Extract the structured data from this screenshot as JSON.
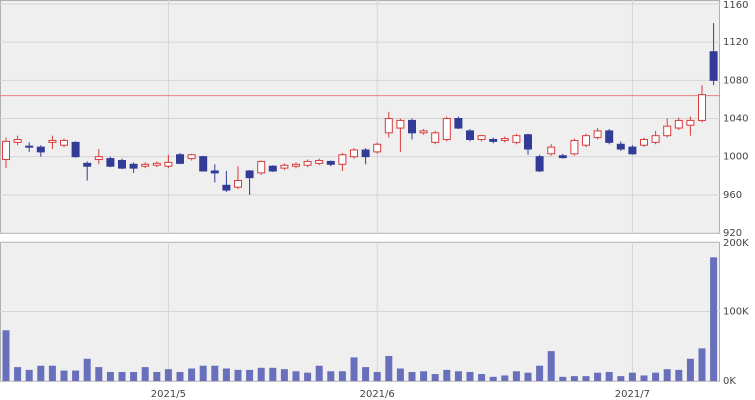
{
  "chart_data": [
    {
      "type": "candlestick",
      "open": [
        997,
        1015,
        1011,
        1010,
        1015,
        1012,
        1015,
        993,
        997,
        998,
        996,
        992,
        990,
        991,
        990,
        1002,
        998,
        1000,
        985,
        970,
        968,
        985,
        983,
        990,
        988,
        990,
        991,
        993,
        995,
        992,
        1000,
        1007,
        1005,
        1025,
        1030,
        1038,
        1025,
        1015,
        1018,
        1040,
        1027,
        1018,
        1018,
        1017,
        1015,
        1023,
        1000,
        1003,
        1001,
        1003,
        1012,
        1020,
        1027,
        1013,
        1010,
        1012,
        1015,
        1022,
        1030,
        1033,
        1038,
        1110
      ],
      "high": [
        1020,
        1022,
        1015,
        1012,
        1022,
        1019,
        1016,
        995,
        1008,
        1000,
        998,
        994,
        994,
        995,
        1002,
        1004,
        1003,
        1001,
        992,
        985,
        990,
        986,
        996,
        991,
        993,
        994,
        997,
        998,
        996,
        1004,
        1009,
        1009,
        1015,
        1047,
        1040,
        1040,
        1029,
        1027,
        1042,
        1042,
        1029,
        1023,
        1020,
        1021,
        1024,
        1024,
        1002,
        1013,
        1003,
        1019,
        1024,
        1030,
        1029,
        1016,
        1012,
        1020,
        1027,
        1040,
        1041,
        1042,
        1075,
        1140
      ],
      "low": [
        988,
        1012,
        1005,
        1000,
        1008,
        1010,
        999,
        975,
        992,
        989,
        987,
        983,
        988,
        989,
        988,
        992,
        996,
        985,
        973,
        963,
        966,
        960,
        981,
        984,
        986,
        988,
        989,
        991,
        990,
        985,
        998,
        992,
        1003,
        1020,
        1005,
        1018,
        1023,
        1013,
        1016,
        1029,
        1016,
        1016,
        1014,
        1015,
        1013,
        1002,
        984,
        1001,
        998,
        1001,
        1010,
        1018,
        1013,
        1006,
        1002,
        1010,
        1013,
        1020,
        1028,
        1022,
        1036,
        1075
      ],
      "close": [
        1016,
        1018,
        1010,
        1005,
        1017,
        1017,
        1000,
        990,
        1000,
        990,
        988,
        988,
        992,
        993,
        994,
        993,
        1002,
        985,
        983,
        965,
        975,
        978,
        995,
        985,
        991,
        992,
        995,
        996,
        992,
        1002,
        1007,
        1000,
        1013,
        1040,
        1038,
        1025,
        1027,
        1025,
        1040,
        1030,
        1018,
        1022,
        1016,
        1019,
        1022,
        1008,
        985,
        1010,
        999,
        1017,
        1022,
        1027,
        1015,
        1008,
        1003,
        1018,
        1022,
        1032,
        1038,
        1038,
        1065,
        1080
      ],
      "up_color": "#d83c3c",
      "down_color": "#323c96",
      "ylim": [
        920,
        1160
      ],
      "yticks": [
        920,
        960,
        1000,
        1040,
        1080,
        1120,
        1160
      ],
      "hline": 1064,
      "hline_color": "#e88080",
      "grid": true
    },
    {
      "type": "bar",
      "categories": [
        null,
        null,
        null,
        null,
        null,
        null,
        null,
        null,
        null,
        null,
        null,
        null,
        null,
        null,
        "2021/5",
        null,
        null,
        null,
        null,
        null,
        null,
        null,
        null,
        null,
        null,
        null,
        null,
        null,
        null,
        null,
        null,
        null,
        "2021/6",
        null,
        null,
        null,
        null,
        null,
        null,
        null,
        null,
        null,
        null,
        null,
        null,
        null,
        null,
        null,
        null,
        null,
        null,
        null,
        null,
        null,
        "2021/7",
        null,
        null,
        null,
        null,
        null,
        null,
        null
      ],
      "values": [
        73000,
        20000,
        16000,
        22000,
        22000,
        15000,
        15000,
        32000,
        20000,
        13000,
        13000,
        13000,
        20000,
        13000,
        17000,
        13000,
        18000,
        22000,
        22000,
        18000,
        16000,
        16000,
        19000,
        19000,
        17000,
        14000,
        12000,
        22000,
        14000,
        14000,
        34000,
        20000,
        13000,
        36000,
        18000,
        13000,
        14000,
        10000,
        16000,
        14000,
        13000,
        10000,
        6000,
        8000,
        14000,
        12000,
        22000,
        43000,
        6000,
        7000,
        7000,
        12000,
        13000,
        7000,
        12000,
        8000,
        12000,
        17000,
        16000,
        32000,
        47000,
        178000
      ],
      "color": "#6870bc",
      "ylim": [
        0,
        200000
      ],
      "yticks": [
        {
          "value": 0,
          "label": "0K"
        },
        {
          "value": 100000,
          "label": "100K"
        },
        {
          "value": 200000,
          "label": "200K"
        }
      ],
      "grid": true
    }
  ]
}
